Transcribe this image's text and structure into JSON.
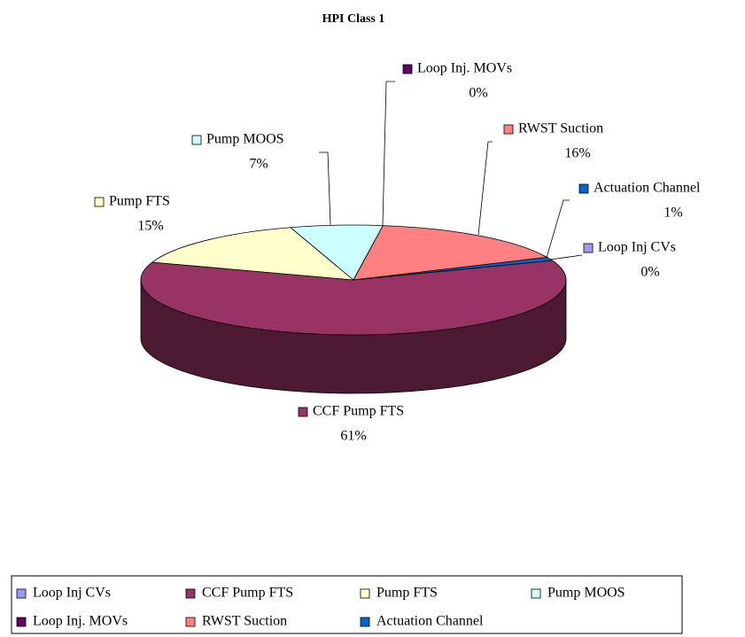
{
  "chart_data": {
    "type": "pie",
    "title": "HPI Class 1",
    "categories": [
      "Loop Inj CVs",
      "CCF Pump FTS",
      "Pump FTS",
      "Pump MOOS",
      "Loop Inj. MOVs",
      "RWST Suction",
      "Actuation Channel"
    ],
    "values": [
      0,
      61,
      15,
      7,
      0,
      16,
      1
    ],
    "value_labels": [
      "0%",
      "61%",
      "15%",
      "7%",
      "0%",
      "16%",
      "1%"
    ],
    "colors": [
      "#9999ff",
      "#993366",
      "#ffffcc",
      "#ccffff",
      "#660066",
      "#ff8080",
      "#0066cc"
    ],
    "legend": "bottom"
  }
}
